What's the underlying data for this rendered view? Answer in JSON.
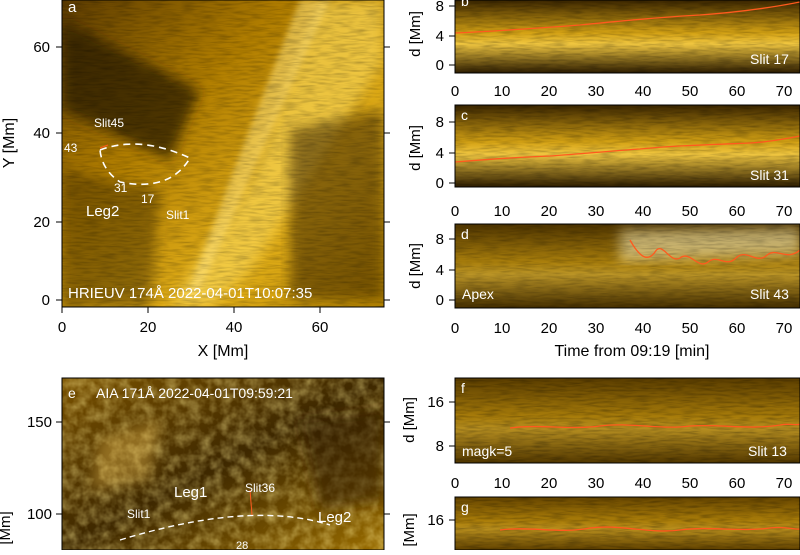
{
  "panel_a": {
    "letter": "a",
    "caption": "HRIEUV 174Å 2022-04-01T10:07:35",
    "xlabel": "X [Mm]",
    "ylabel": "Y [Mm]",
    "xticks": [
      "0",
      "20",
      "40",
      "60"
    ],
    "yticks": [
      "0",
      "20",
      "40",
      "60"
    ],
    "labels": {
      "slit45": "Slit45",
      "num43": "43",
      "num31": "31",
      "num17": "17",
      "leg2": "Leg2",
      "slit1": "Slit1"
    }
  },
  "panel_b": {
    "letter": "b",
    "slit": "Slit 17",
    "ylabel": "d [Mm]",
    "yticks": [
      "0",
      "4",
      "8"
    ]
  },
  "panel_c": {
    "letter": "c",
    "slit": "Slit 31",
    "ylabel": "d [Mm]",
    "yticks": [
      "0",
      "4",
      "8"
    ]
  },
  "panel_d": {
    "letter": "d",
    "slit": "Slit 43",
    "tag": "Apex",
    "ylabel": "d [Mm]",
    "yticks": [
      "0",
      "4",
      "8"
    ]
  },
  "time_axis": {
    "ticks": [
      "0",
      "10",
      "20",
      "30",
      "40",
      "50",
      "60",
      "70"
    ],
    "label": "Time from 09:19 [min]"
  },
  "panel_e": {
    "letter": "e",
    "caption": "AIA 171Å 2022-04-01T09:59:21",
    "ylabel": "[Mm]",
    "yticks": [
      "100",
      "150"
    ],
    "labels": {
      "leg1": "Leg1",
      "slit36": "Slit36",
      "leg2": "Leg2",
      "slit1": "Slit1",
      "num28": "28"
    }
  },
  "panel_f": {
    "letter": "f",
    "tag": "magk=5",
    "slit": "Slit 13",
    "ylabel": "d [Mm]",
    "yticks": [
      "8",
      "16"
    ]
  },
  "panel_g": {
    "letter": "g",
    "ylabel": "[Mm]",
    "ytick": "16"
  },
  "colors": {
    "frame": "#000000",
    "slit_line": "#ff5a1e",
    "overlay_text": "#ffffff"
  }
}
